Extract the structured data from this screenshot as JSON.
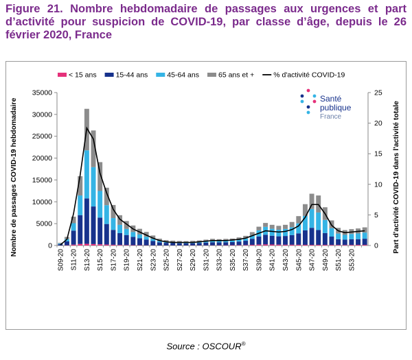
{
  "title": "Figure 21. Nombre hebdomadaire de passages aux urgences et part d’activité pour suspicion de COVID-19, par classe d’âge, depuis le 26 février 2020, France",
  "source": {
    "text": "Source : OSCOUR",
    "mark": "®"
  },
  "logo": {
    "line1": "Santé",
    "line2": "publique",
    "line3": "France"
  },
  "chart_data": {
    "type": "bar",
    "stacked": true,
    "ylabel": "Nombre de passages COVID-19 hebdomadaire",
    "y2label": "Part d'activité COVID-19 dans l'activité totale",
    "ylim": [
      0,
      35000
    ],
    "y2lim": [
      0,
      25
    ],
    "yticks": [
      0,
      5000,
      10000,
      15000,
      20000,
      25000,
      30000,
      35000
    ],
    "y2ticks": [
      0,
      5,
      10,
      15,
      20,
      25
    ],
    "tick_labels": [
      "S09-20",
      "S11-20",
      "S13-20",
      "S15-20",
      "S17-20",
      "S19-20",
      "S21-20",
      "S23-20",
      "S25-20",
      "S27-20",
      "S29-20",
      "S31-20",
      "S33-20",
      "S35-20",
      "S37-20",
      "S39-20",
      "S41-20",
      "S43-20",
      "S45-20",
      "S47-20",
      "S49-20",
      "S51-20",
      "S53-20"
    ],
    "legend_position": "top",
    "series": [
      {
        "name": "< 15 ans",
        "color": "#e5317a",
        "values": [
          20,
          60,
          200,
          350,
          380,
          330,
          280,
          220,
          170,
          130,
          100,
          80,
          70,
          50,
          40,
          30,
          30,
          30,
          30,
          30,
          40,
          40,
          40,
          50,
          60,
          70,
          80,
          90,
          110,
          160,
          220,
          260,
          230,
          200,
          180,
          180,
          170,
          160,
          150,
          150,
          150,
          140,
          130,
          130,
          140,
          150,
          150
        ]
      },
      {
        "name": "15-44 ans",
        "color": "#17328c",
        "values": [
          280,
          900,
          3200,
          6600,
          10400,
          8600,
          6100,
          4700,
          3400,
          2700,
          2300,
          1900,
          1600,
          1300,
          1000,
          700,
          580,
          520,
          480,
          450,
          470,
          520,
          620,
          700,
          660,
          680,
          700,
          820,
          980,
          1380,
          1850,
          2200,
          2000,
          1900,
          2000,
          2200,
          2600,
          3300,
          3900,
          3400,
          2700,
          1900,
          1300,
          1200,
          1300,
          1300,
          1400
        ]
      },
      {
        "name": "45-64 ans",
        "color": "#35b4e5",
        "values": [
          150,
          500,
          1700,
          4500,
          11000,
          9000,
          6100,
          4300,
          2700,
          1900,
          1400,
          1100,
          850,
          650,
          450,
          280,
          200,
          180,
          170,
          160,
          170,
          200,
          260,
          320,
          300,
          320,
          340,
          420,
          520,
          800,
          1400,
          1800,
          1600,
          1500,
          1600,
          1800,
          2300,
          3300,
          4300,
          4000,
          3000,
          1900,
          1300,
          1100,
          1200,
          1300,
          1400
        ]
      },
      {
        "name": "65 ans et +",
        "color": "#8c8c8c",
        "values": [
          150,
          500,
          1500,
          4400,
          9500,
          8400,
          6600,
          4000,
          3000,
          2200,
          1800,
          1500,
          1300,
          1100,
          800,
          550,
          420,
          380,
          350,
          360,
          380,
          400,
          420,
          450,
          430,
          440,
          470,
          520,
          600,
          720,
          830,
          900,
          900,
          900,
          950,
          1200,
          1650,
          2700,
          3500,
          3900,
          2900,
          1800,
          1300,
          1100,
          1100,
          1150,
          1200
        ]
      }
    ],
    "line": {
      "name": "% d'activité COVID-19",
      "color": "#000000",
      "values": [
        0.1,
        1.0,
        5.2,
        11.5,
        19.2,
        17.4,
        11.8,
        8.6,
        5.9,
        4.3,
        3.5,
        2.7,
        2.2,
        1.7,
        1.2,
        0.8,
        0.6,
        0.5,
        0.5,
        0.5,
        0.5,
        0.6,
        0.7,
        0.8,
        0.8,
        0.8,
        0.9,
        1.0,
        1.2,
        1.6,
        2.0,
        2.4,
        2.3,
        2.2,
        2.3,
        2.6,
        3.2,
        4.6,
        6.7,
        6.7,
        5.2,
        3.3,
        2.4,
        2.1,
        2.2,
        2.3,
        2.4
      ]
    }
  }
}
